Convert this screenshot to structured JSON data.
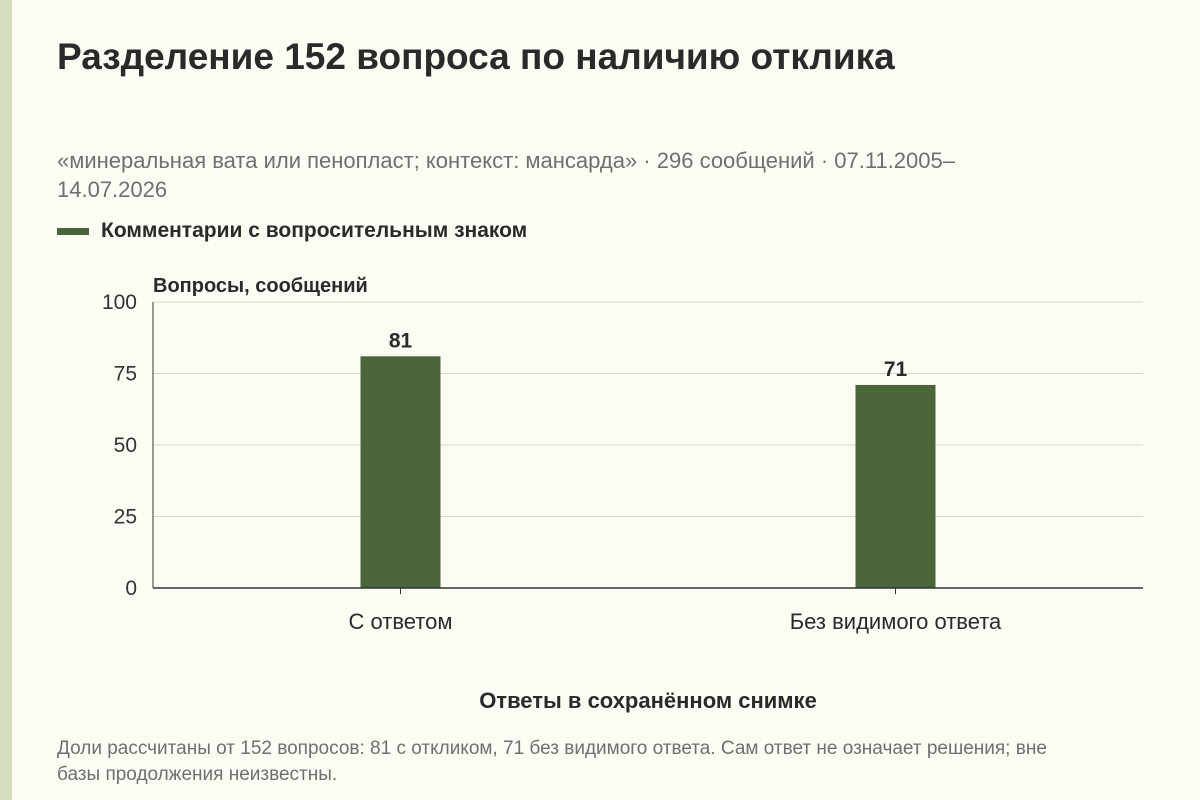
{
  "title": "Разделение 152 вопроса по наличию отклика",
  "subtitle": "«минеральная вата или пенопласт; контекст: мансарда» · 296 сообщений · 07.11.2005–14.07.2026",
  "footnote": "Доли рассчитаны от 152 вопросов: 81 с откликом, 71 без видимого ответа. Сам ответ не означает решения; вне базы продолжения неизвестны.",
  "colors": {
    "bar": "#4a653a",
    "background": "#fdfcf4",
    "grid": "#d6d6d0",
    "axis": "#333333",
    "side_stripe": "#d3dfbf"
  },
  "chart_data": {
    "type": "bar",
    "categories": [
      "С ответом",
      "Без видимого ответа"
    ],
    "series": [
      {
        "name": "Комментарии с вопросительным знаком",
        "values": [
          81,
          71
        ]
      }
    ],
    "xlabel": "Ответы в сохранённом снимке",
    "ylabel": "Вопросы, сообщений",
    "ylim": [
      0,
      100
    ],
    "yticks": [
      0,
      25,
      50,
      75,
      100
    ],
    "grid": true,
    "legend_position": "top-left",
    "data_labels": true
  }
}
